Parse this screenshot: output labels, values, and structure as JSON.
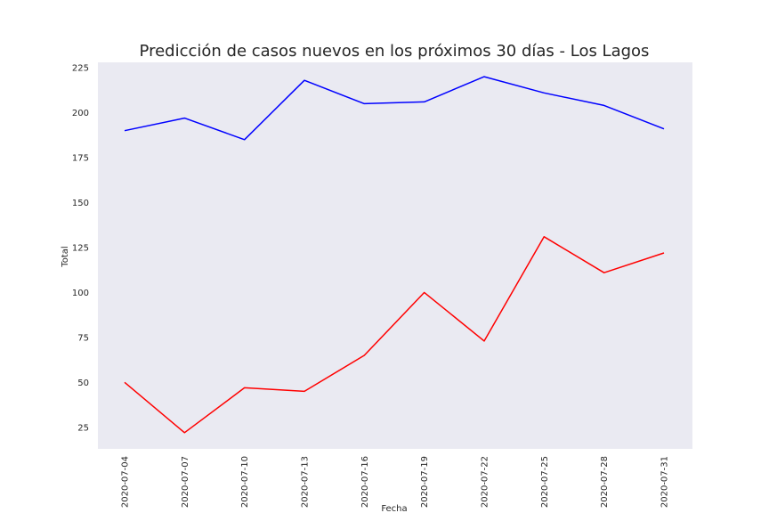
{
  "chart_data": {
    "type": "line",
    "title": "Predicción de casos nuevos en los próximos 30 días - Los Lagos",
    "xlabel": "Fecha",
    "ylabel": "Total",
    "categories": [
      "2020-07-04",
      "2020-07-07",
      "2020-07-10",
      "2020-07-13",
      "2020-07-16",
      "2020-07-19",
      "2020-07-22",
      "2020-07-25",
      "2020-07-28",
      "2020-07-31"
    ],
    "series": [
      {
        "values": [
          190,
          197,
          185,
          218,
          205,
          206,
          220,
          211,
          204,
          191
        ],
        "color": "#0000ff"
      },
      {
        "values": [
          50,
          22,
          47,
          45,
          65,
          100,
          73,
          131,
          111,
          122
        ],
        "color": "#ff0000"
      }
    ],
    "yticks": [
      25,
      50,
      75,
      100,
      125,
      150,
      175,
      200,
      225
    ],
    "ylim": [
      13,
      228
    ],
    "grid": false,
    "background": "#eaeaf2"
  }
}
